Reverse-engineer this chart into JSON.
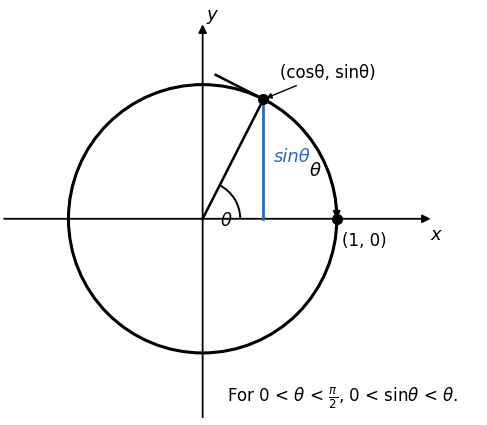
{
  "theta": 1.1,
  "circle_color": "#000000",
  "circle_linewidth": 2.2,
  "hypotenuse_color": "#000000",
  "vertical_color": "#2b6cb5",
  "dot_color": "#000000",
  "dot_size": 7,
  "arc_color": "#000000",
  "tangent_line_color": "#000000",
  "tangent_line_linewidth": 1.8,
  "axis_linewidth": 1.3,
  "hyp_linewidth": 1.8,
  "vert_linewidth": 2.0,
  "label_cos_sin": "(cosθ, sinθ)",
  "label_10": "(1, 0)",
  "label_sinTheta": "sinθ",
  "label_theta_origin": "θ",
  "label_theta_arc": "θ",
  "label_x": "x",
  "label_y": "y",
  "xlim": [
    -1.5,
    1.75
  ],
  "ylim": [
    -1.5,
    1.5
  ],
  "figsize": [
    4.87,
    4.25
  ],
  "dpi": 100,
  "theta_label_r": 0.28,
  "arc_label_r": 0.88,
  "tangent_back": 0.05,
  "tangent_fwd": 0.4
}
